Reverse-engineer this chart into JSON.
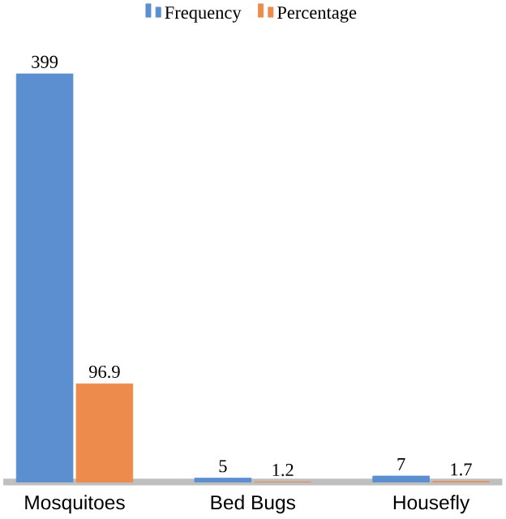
{
  "chart_data": {
    "type": "bar",
    "categories": [
      "Mosquitoes",
      "Bed Bugs",
      "Housefly"
    ],
    "series": [
      {
        "name": "Frequency",
        "color": "#5b8fd0",
        "values": [
          399,
          5,
          7
        ]
      },
      {
        "name": "Percentage",
        "color": "#ed8b4c",
        "values": [
          96.9,
          1.2,
          1.7
        ]
      }
    ],
    "data_labels": true,
    "legend": "top",
    "tick_labels": "x"
  }
}
